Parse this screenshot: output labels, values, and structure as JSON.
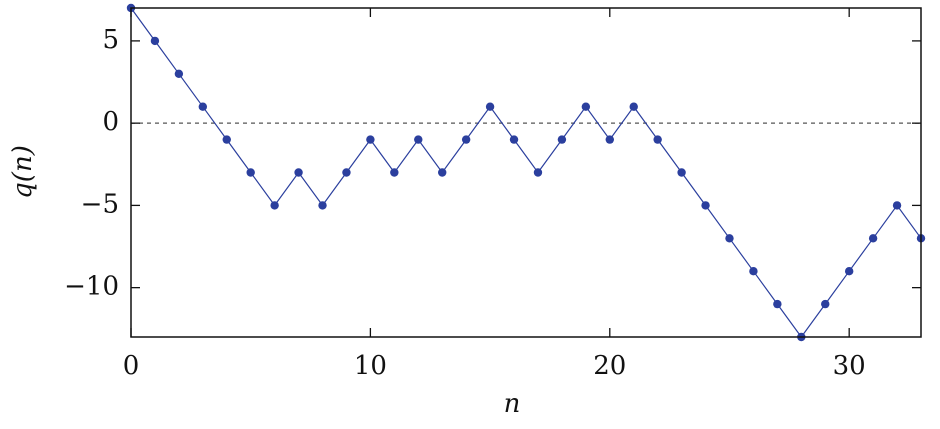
{
  "chart_data": {
    "type": "line",
    "xlabel": "n",
    "ylabel": "q(n)",
    "x": [
      0,
      1,
      2,
      3,
      4,
      5,
      6,
      7,
      8,
      9,
      10,
      11,
      12,
      13,
      14,
      15,
      16,
      17,
      18,
      19,
      20,
      21,
      22,
      23,
      24,
      25,
      26,
      27,
      28,
      29,
      30,
      31,
      32,
      33
    ],
    "series": [
      {
        "color": "#2b3f9e",
        "values": [
          7,
          5,
          3,
          1,
          -1,
          -3,
          -5,
          -3,
          -5,
          -3,
          -1,
          -3,
          -1,
          -3,
          -1,
          1,
          -1,
          -3,
          -1,
          1,
          -1,
          1,
          -1,
          -3,
          -5,
          -7,
          -9,
          -11,
          -13,
          -11,
          -9,
          -7,
          -5,
          -7
        ]
      }
    ],
    "xlim": [
      0,
      33
    ],
    "ylim": [
      -13,
      7
    ],
    "xticks": [
      0,
      10,
      20,
      30
    ],
    "yticks": [
      {
        "value": -10,
        "label": "−10"
      },
      {
        "value": -5,
        "label": "−5"
      },
      0,
      5
    ],
    "hline": 0
  }
}
